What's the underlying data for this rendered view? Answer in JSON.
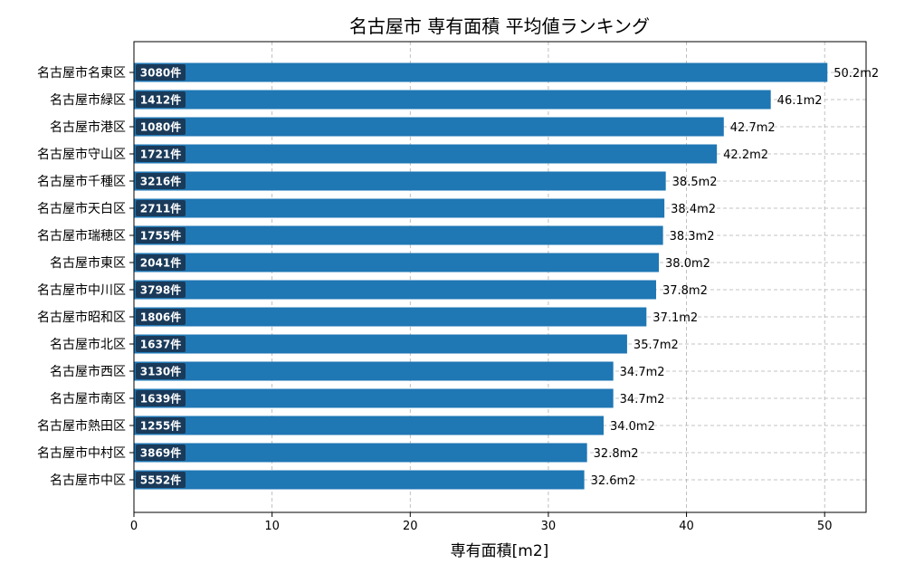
{
  "chart_data": {
    "type": "bar",
    "orientation": "horizontal",
    "title": "名古屋市 専有面積 平均値ランキング",
    "xlabel": "専有面積[m2]",
    "ylabel": "",
    "xlim": [
      0,
      53
    ],
    "xticks": [
      0,
      10,
      20,
      30,
      40,
      50
    ],
    "grid": true,
    "bar_color": "#1f77b4",
    "count_box_color": "#1a3a5a",
    "categories": [
      "名古屋市名東区",
      "名古屋市緑区",
      "名古屋市港区",
      "名古屋市守山区",
      "名古屋市千種区",
      "名古屋市天白区",
      "名古屋市瑞穂区",
      "名古屋市東区",
      "名古屋市中川区",
      "名古屋市昭和区",
      "名古屋市北区",
      "名古屋市西区",
      "名古屋市南区",
      "名古屋市熱田区",
      "名古屋市中村区",
      "名古屋市中区"
    ],
    "values": [
      50.2,
      46.1,
      42.7,
      42.2,
      38.5,
      38.4,
      38.3,
      38.0,
      37.8,
      37.1,
      35.7,
      34.7,
      34.7,
      34.0,
      32.8,
      32.6
    ],
    "value_labels": [
      "50.2m2",
      "46.1m2",
      "42.7m2",
      "42.2m2",
      "38.5m2",
      "38.4m2",
      "38.3m2",
      "38.0m2",
      "37.8m2",
      "37.1m2",
      "35.7m2",
      "34.7m2",
      "34.7m2",
      "34.0m2",
      "32.8m2",
      "32.6m2"
    ],
    "counts": [
      "3080件",
      "1412件",
      "1080件",
      "1721件",
      "3216件",
      "2711件",
      "1755件",
      "2041件",
      "3798件",
      "1806件",
      "1637件",
      "3130件",
      "1639件",
      "1255件",
      "3869件",
      "5552件"
    ]
  }
}
